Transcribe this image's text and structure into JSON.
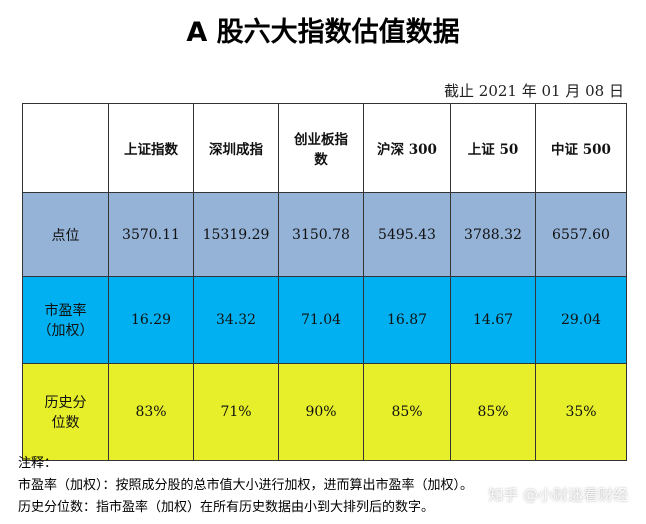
{
  "header": {
    "title": "A 股六大指数估值数据",
    "date": "截止 2021 年 01 月 08 日"
  },
  "table": {
    "columns": [
      "上证指数",
      "深圳成指",
      "创业板指\n数",
      "沪深 300",
      "上证 50",
      "中证 500"
    ],
    "rows": [
      {
        "label": "点位",
        "values": [
          "3570.11",
          "15319.29",
          "3150.78",
          "5495.43",
          "3788.32",
          "6557.60"
        ]
      },
      {
        "label": "市盈率\n（加权）",
        "values": [
          "16.29",
          "34.32",
          "71.04",
          "16.87",
          "14.67",
          "29.04"
        ]
      },
      {
        "label": "历史分\n位数",
        "values": [
          "83%",
          "71%",
          "90%",
          "85%",
          "85%",
          "35%"
        ]
      }
    ]
  },
  "notes": {
    "heading": "注释：",
    "lines": [
      "市盈率（加权）：按照成分股的总市值大小进行加权，进而算出市盈率（加权）。",
      "历史分位数：指市盈率（加权）在所有历史数据由小到大排列后的数字。"
    ]
  },
  "watermark": "知乎 @小财迷看财经"
}
